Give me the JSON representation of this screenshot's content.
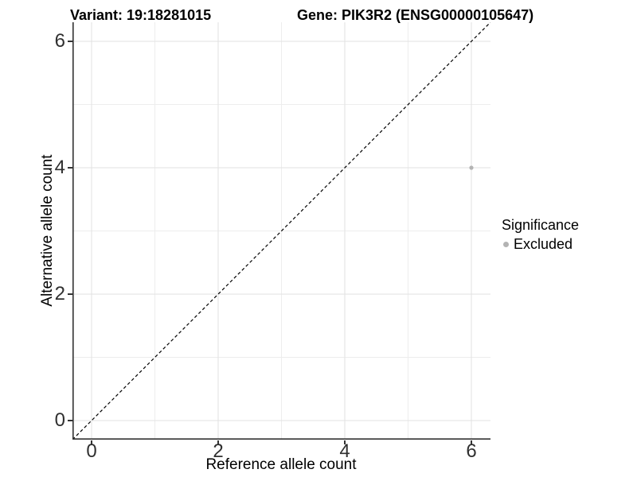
{
  "titles": {
    "left": "Variant: 19:18281015",
    "right": "Gene: PIK3R2 (ENSG00000105647)"
  },
  "chart_data": {
    "type": "scatter",
    "title": "Variant: 19:18281015 — Gene: PIK3R2 (ENSG00000105647)",
    "xlabel": "Reference allele count",
    "ylabel": "Alternative allele count",
    "xticks": [
      "0",
      "2",
      "4",
      "6"
    ],
    "yticks": [
      "0",
      "2",
      "4",
      "6"
    ],
    "xlim": [
      -0.3,
      6.3
    ],
    "ylim": [
      -0.3,
      6.3
    ],
    "grid": "on",
    "series": [
      {
        "name": "Excluded",
        "color": "#b3b3b3",
        "points": [
          {
            "x": 6,
            "y": 4
          }
        ]
      }
    ],
    "reference_line": {
      "equation": "y = x",
      "style": "dashed",
      "color": "#000000"
    },
    "legend": {
      "title": "Significance",
      "position": "right",
      "entries": [
        {
          "label": "Excluded",
          "color": "#b3b3b3"
        }
      ]
    }
  },
  "colors": {
    "background": "#ffffff",
    "axis_line": "#333333",
    "grid_major": "#e2e2e2",
    "grid_minor": "#ededed",
    "tick_text": "#303030",
    "text": "#000000",
    "point": "#b3b3b3"
  }
}
